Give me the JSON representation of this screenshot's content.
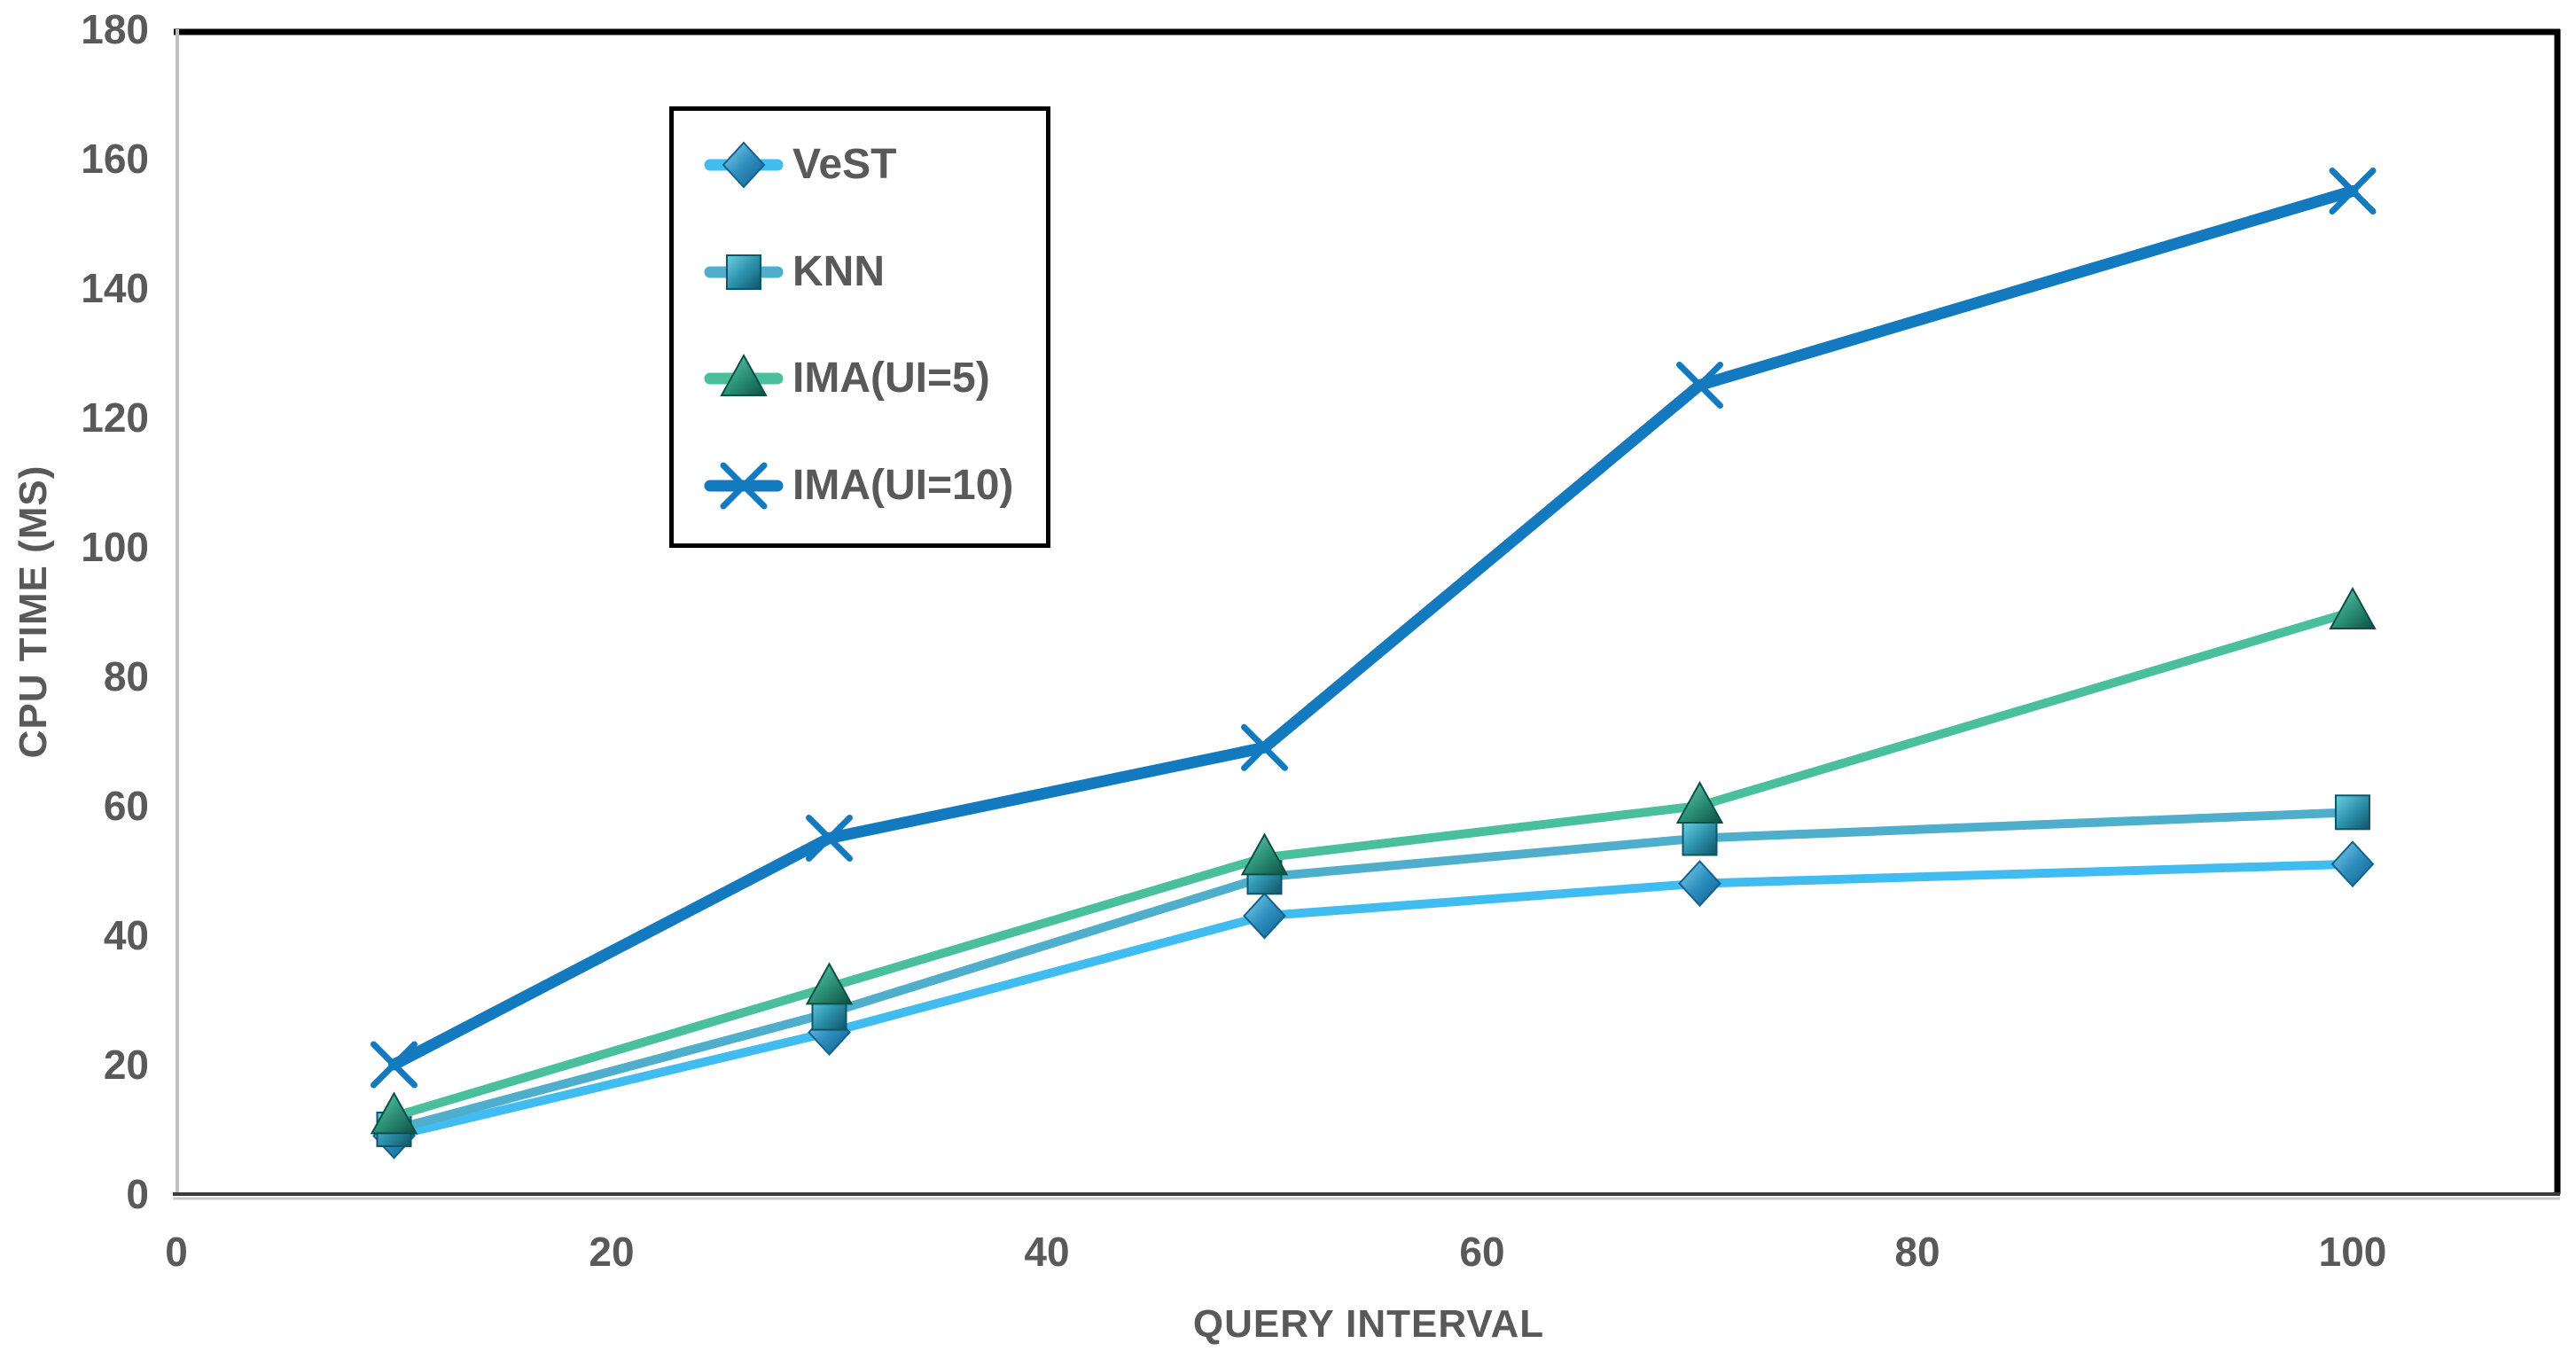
{
  "chart_data": {
    "type": "line",
    "title": "",
    "xlabel": "QUERY INTERVAL",
    "ylabel": "CPU TIME (MS)",
    "x": [
      10,
      30,
      50,
      70,
      100
    ],
    "xticks": [
      0,
      20,
      40,
      60,
      80,
      100
    ],
    "yticks": [
      0,
      20,
      40,
      60,
      80,
      100,
      120,
      140,
      160,
      180
    ],
    "xlim": [
      0,
      110
    ],
    "ylim": [
      0,
      180
    ],
    "grid": false,
    "legend_position": "inside-top-left",
    "series": [
      {
        "name": "VeST",
        "marker": "diamond",
        "color": "#41BCF0",
        "values": [
          9,
          25,
          43,
          48,
          51
        ]
      },
      {
        "name": "KNN",
        "marker": "square",
        "color": "#4FAECB",
        "values": [
          10,
          28,
          49,
          55,
          59
        ]
      },
      {
        "name": "IMA(UI=5)",
        "marker": "triangle",
        "color": "#49BF9C",
        "values": [
          12,
          32,
          52,
          60,
          90
        ]
      },
      {
        "name": "IMA(UI=10)",
        "marker": "x",
        "color": "#147AC0",
        "values": [
          20,
          55,
          69,
          125,
          155
        ]
      }
    ]
  },
  "colors": {
    "text": "#595959",
    "plot_border": "#000000",
    "y_axis_line": "#BFBFBF",
    "x_axis_line": "#3A3A3A",
    "x_axis_shadow": "#C9C9C9",
    "background": "#FFFFFF"
  }
}
